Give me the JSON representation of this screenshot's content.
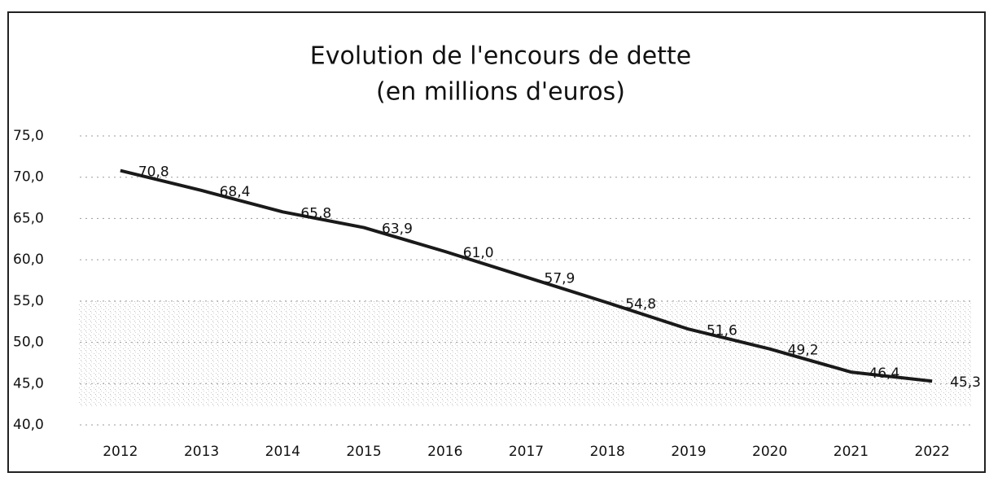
{
  "chart_data": {
    "type": "line",
    "title": "Evolution de l'encours de dette",
    "subtitle": "(en millions d'euros)",
    "categories": [
      "2012",
      "2013",
      "2014",
      "2015",
      "2016",
      "2017",
      "2018",
      "2019",
      "2020",
      "2021",
      "2022"
    ],
    "values": [
      70.8,
      68.4,
      65.8,
      63.9,
      61.0,
      57.9,
      54.8,
      51.6,
      49.2,
      46.4,
      45.3
    ],
    "value_labels": [
      "70,8",
      "68,4",
      "65,8",
      "63,9",
      "61,0",
      "57,9",
      "54,8",
      "51,6",
      "49,2",
      "46,4",
      "45,3"
    ],
    "color": "#1a1a1a",
    "ylim": [
      40,
      75
    ],
    "yticks": [
      {
        "value": 40,
        "label": "40,0"
      },
      {
        "value": 45,
        "label": "45,0"
      },
      {
        "value": 50,
        "label": "50,0"
      },
      {
        "value": 55,
        "label": "55,0"
      },
      {
        "value": 60,
        "label": "60,0"
      },
      {
        "value": 65,
        "label": "65,0"
      },
      {
        "value": 70,
        "label": "70,0"
      },
      {
        "value": 75,
        "label": "75,0"
      }
    ],
    "grid": true
  }
}
